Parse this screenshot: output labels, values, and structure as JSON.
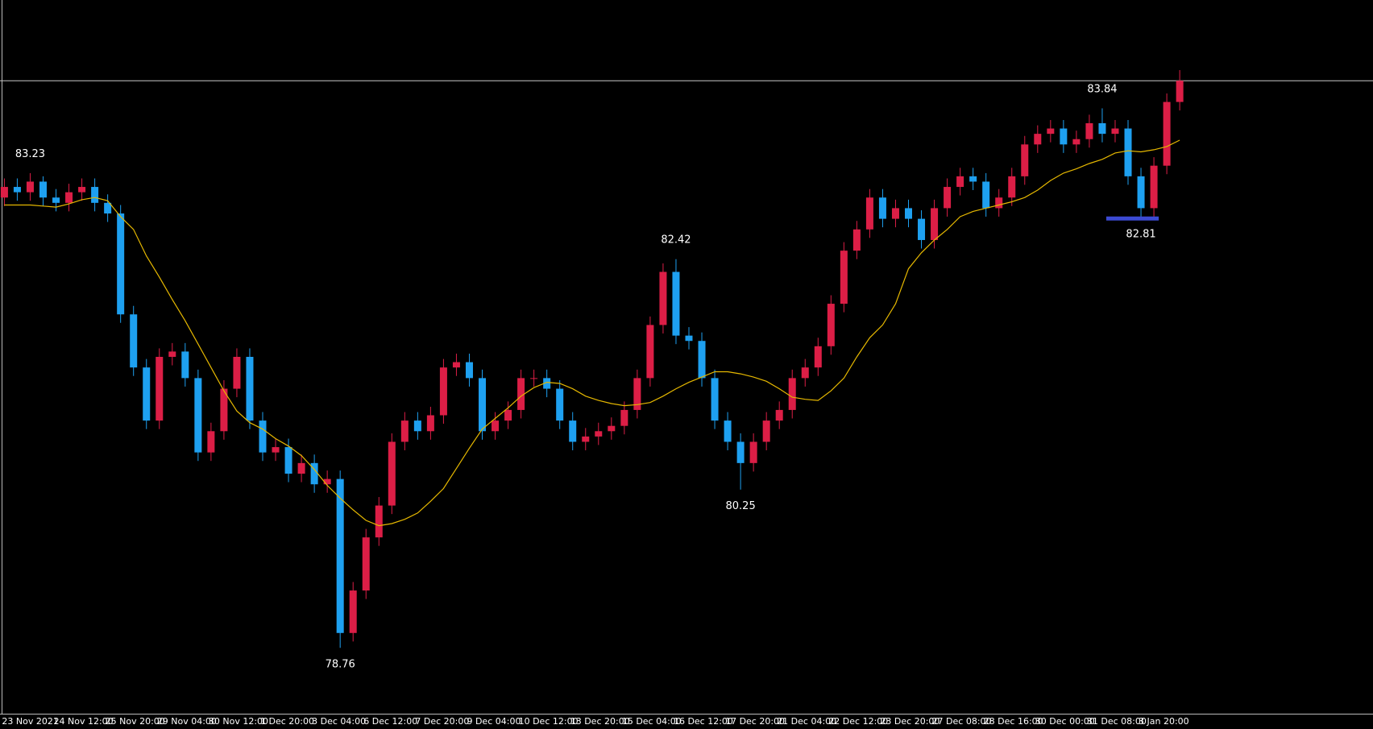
{
  "chart_data": {
    "type": "candlestick",
    "categories": [
      "23 Nov 2021",
      null,
      null,
      null,
      "24 Nov 12:00",
      null,
      null,
      null,
      "25 Nov 20:00",
      null,
      null,
      null,
      "29 Nov 04:00",
      null,
      null,
      null,
      "30 Nov 12:00",
      null,
      null,
      null,
      "1 Dec 20:00",
      null,
      null,
      null,
      "3 Dec 04:00",
      null,
      null,
      null,
      "6 Dec 12:00",
      null,
      null,
      null,
      "7 Dec 20:00",
      null,
      null,
      null,
      "9 Dec 04:00",
      null,
      null,
      null,
      "10 Dec 12:00",
      null,
      null,
      null,
      "13 Dec 20:00",
      null,
      null,
      null,
      "15 Dec 04:00",
      null,
      null,
      null,
      "16 Dec 12:00",
      null,
      null,
      null,
      "17 Dec 20:00",
      null,
      null,
      null,
      "21 Dec 04:00",
      null,
      null,
      null,
      "22 Dec 12:00",
      null,
      null,
      null,
      "23 Dec 20:00",
      null,
      null,
      null,
      "27 Dec 08:00",
      null,
      null,
      null,
      "28 Dec 16:00",
      null,
      null,
      null,
      "30 Dec 00:00",
      null,
      null,
      null,
      "31 Dec 08:00",
      null,
      null,
      null,
      "3 Jan 20:00",
      null,
      null,
      null
    ],
    "open": [
      83.0,
      83.1,
      83.05,
      83.15,
      83.0,
      82.95,
      83.05,
      83.1,
      82.95,
      82.85,
      81.9,
      81.4,
      80.9,
      81.5,
      81.55,
      81.3,
      80.6,
      80.8,
      81.2,
      81.5,
      80.9,
      80.6,
      80.65,
      80.4,
      80.5,
      80.3,
      80.35,
      78.9,
      79.3,
      79.8,
      80.1,
      80.7,
      80.9,
      80.8,
      80.95,
      81.4,
      81.45,
      81.3,
      80.8,
      80.9,
      81.0,
      81.3,
      81.3,
      81.2,
      80.9,
      80.7,
      80.75,
      80.8,
      80.85,
      81.0,
      81.3,
      81.8,
      82.3,
      81.7,
      81.65,
      81.3,
      80.9,
      80.7,
      80.5,
      80.7,
      80.9,
      81.0,
      81.3,
      81.4,
      81.6,
      82.0,
      82.5,
      82.7,
      83.0,
      82.8,
      82.9,
      82.8,
      82.6,
      82.9,
      83.1,
      83.2,
      83.15,
      82.9,
      83.0,
      83.2,
      83.5,
      83.6,
      83.65,
      83.5,
      83.55,
      83.7,
      83.6,
      83.65,
      83.2,
      82.9,
      83.3,
      83.9
    ],
    "high": [
      83.18,
      83.18,
      83.23,
      83.2,
      83.08,
      83.13,
      83.18,
      83.18,
      83.03,
      82.93,
      81.98,
      81.48,
      81.58,
      81.63,
      81.63,
      81.38,
      80.88,
      81.28,
      81.58,
      81.58,
      80.98,
      80.73,
      80.73,
      80.58,
      80.58,
      80.43,
      80.43,
      79.38,
      79.88,
      80.18,
      80.78,
      80.98,
      80.98,
      81.03,
      81.48,
      81.53,
      81.53,
      81.38,
      80.98,
      81.08,
      81.38,
      81.38,
      81.38,
      81.28,
      80.98,
      80.83,
      80.88,
      80.93,
      81.08,
      81.38,
      81.88,
      82.38,
      82.42,
      81.78,
      81.73,
      81.38,
      80.98,
      80.78,
      80.78,
      80.98,
      81.08,
      81.38,
      81.48,
      81.68,
      82.08,
      82.58,
      82.78,
      83.08,
      83.08,
      82.98,
      82.98,
      82.88,
      82.98,
      83.18,
      83.28,
      83.28,
      83.23,
      83.08,
      83.28,
      83.58,
      83.68,
      83.73,
      83.73,
      83.63,
      83.78,
      83.84,
      83.73,
      83.73,
      83.28,
      83.38,
      83.98,
      84.2
    ],
    "low": [
      82.92,
      82.97,
      82.97,
      82.92,
      82.87,
      82.87,
      82.97,
      82.87,
      82.77,
      81.82,
      81.32,
      80.82,
      80.82,
      81.42,
      81.22,
      80.52,
      80.52,
      80.72,
      81.12,
      80.82,
      80.52,
      80.52,
      80.32,
      80.32,
      80.22,
      80.22,
      78.76,
      78.82,
      79.22,
      79.72,
      80.02,
      80.62,
      80.72,
      80.72,
      80.87,
      81.32,
      81.22,
      80.72,
      80.72,
      80.82,
      80.92,
      81.22,
      81.12,
      80.82,
      80.62,
      80.62,
      80.67,
      80.72,
      80.77,
      80.92,
      81.22,
      81.72,
      81.62,
      81.57,
      81.22,
      80.82,
      80.62,
      80.25,
      80.42,
      80.62,
      80.82,
      80.92,
      81.22,
      81.32,
      81.52,
      81.92,
      82.42,
      82.62,
      82.72,
      82.72,
      82.72,
      82.52,
      82.52,
      82.82,
      83.02,
      83.07,
      82.82,
      82.82,
      82.92,
      83.12,
      83.42,
      83.52,
      83.42,
      83.42,
      83.47,
      83.52,
      83.52,
      83.12,
      82.81,
      82.82,
      83.22,
      83.82
    ],
    "close": [
      83.1,
      83.05,
      83.15,
      83.0,
      82.95,
      83.05,
      83.1,
      82.95,
      82.85,
      81.9,
      81.4,
      80.9,
      81.5,
      81.55,
      81.3,
      80.6,
      80.8,
      81.2,
      81.5,
      80.9,
      80.6,
      80.65,
      80.4,
      80.5,
      80.3,
      80.35,
      78.9,
      79.3,
      79.8,
      80.1,
      80.7,
      80.9,
      80.8,
      80.95,
      81.4,
      81.45,
      81.3,
      80.8,
      80.9,
      81.0,
      81.3,
      81.3,
      81.2,
      80.9,
      80.7,
      80.75,
      80.8,
      80.85,
      81.0,
      81.3,
      81.8,
      82.3,
      81.7,
      81.65,
      81.3,
      80.9,
      80.7,
      80.5,
      80.7,
      80.9,
      81.0,
      81.3,
      81.4,
      81.6,
      82.0,
      82.5,
      82.7,
      83.0,
      82.8,
      82.9,
      82.8,
      82.6,
      82.9,
      83.1,
      83.2,
      83.15,
      82.9,
      83.0,
      83.2,
      83.5,
      83.6,
      83.65,
      83.5,
      83.55,
      83.7,
      83.6,
      83.65,
      83.2,
      82.9,
      83.3,
      83.9,
      84.1
    ],
    "up_color": "#dc1e46",
    "down_color": "#1ea0f0",
    "ma": {
      "color": "#e6b800",
      "values": [
        82.93,
        82.93,
        82.93,
        82.92,
        82.91,
        82.94,
        82.98,
        83.0,
        82.97,
        82.82,
        82.7,
        82.45,
        82.25,
        82.04,
        81.84,
        81.62,
        81.4,
        81.18,
        80.99,
        80.88,
        80.82,
        80.73,
        80.66,
        80.57,
        80.44,
        80.29,
        80.17,
        80.06,
        79.96,
        79.91,
        79.93,
        79.97,
        80.03,
        80.14,
        80.26,
        80.45,
        80.64,
        80.82,
        80.92,
        81.02,
        81.13,
        81.21,
        81.26,
        81.25,
        81.2,
        81.13,
        81.09,
        81.06,
        81.04,
        81.05,
        81.07,
        81.13,
        81.2,
        81.26,
        81.31,
        81.36,
        81.36,
        81.34,
        81.31,
        81.27,
        81.2,
        81.12,
        81.1,
        81.09,
        81.18,
        81.3,
        81.5,
        81.68,
        81.8,
        82.0,
        82.33,
        82.48,
        82.6,
        82.7,
        82.82,
        82.87,
        82.9,
        82.93,
        82.96,
        83.0,
        83.07,
        83.16,
        83.23,
        83.27,
        83.32,
        83.36,
        83.42,
        83.44,
        83.43,
        83.45,
        83.48,
        83.54
      ]
    },
    "price_line": 84.1,
    "price_line_color": "#c8c8c8",
    "annotations": [
      83.23,
      82.42,
      80.25,
      78.76,
      83.84,
      82.81
    ],
    "support_color": "#3c4ad2",
    "ylim": [
      78.14,
      84.86
    ]
  }
}
